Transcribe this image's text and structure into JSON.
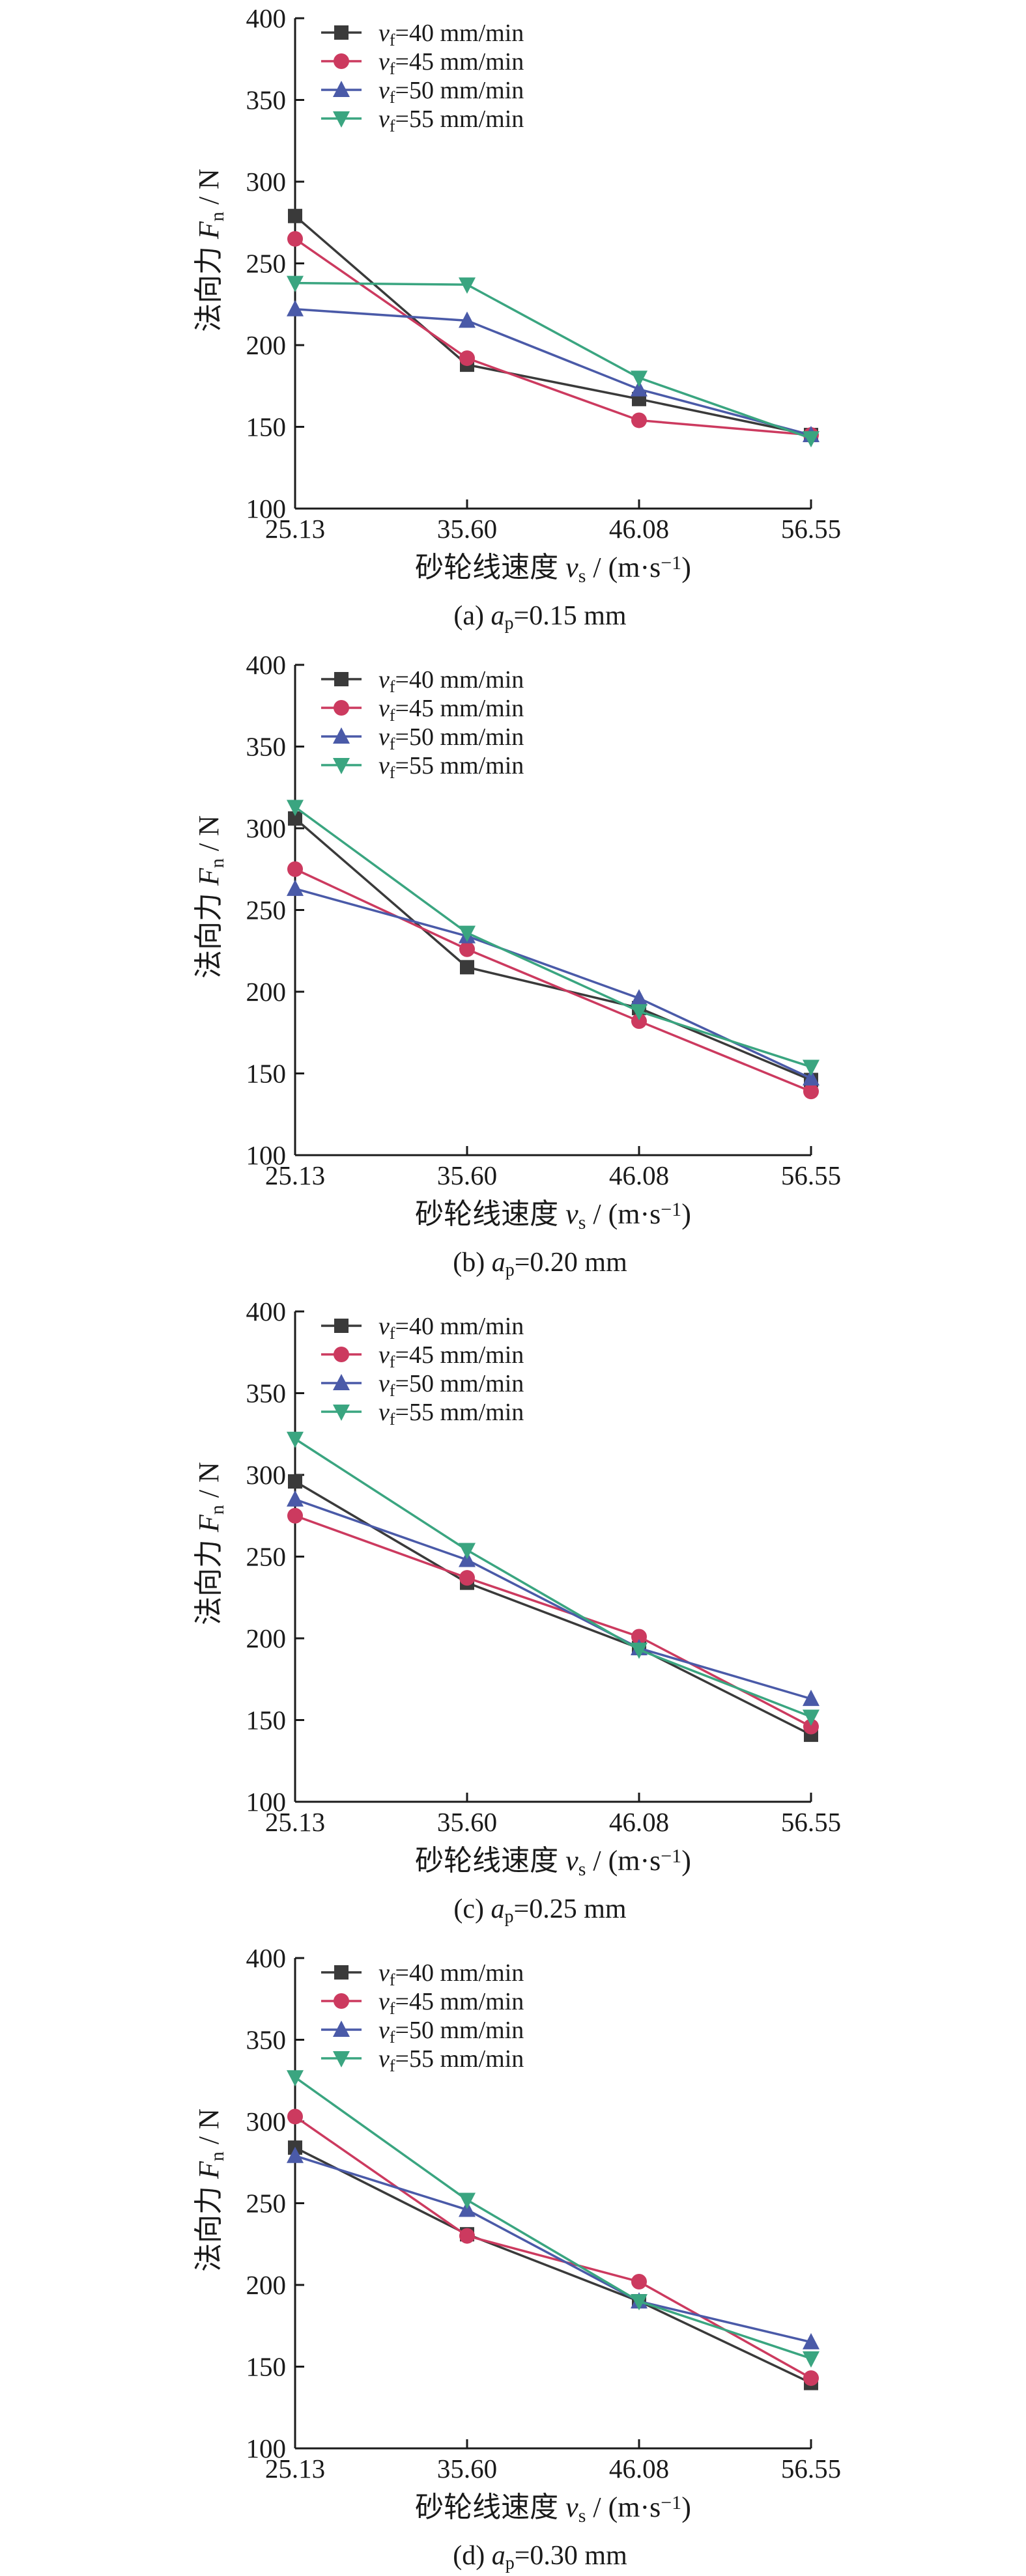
{
  "chart_data": [
    {
      "type": "line",
      "caption": "(a) a_p=0.15 mm",
      "caption_parts": {
        "prefix": "(a) ",
        "var": "a",
        "sub": "p",
        "rest": "=0.15 mm"
      },
      "xlabel": {
        "main": "砂轮线速度 ",
        "var": "v",
        "sub": "s",
        "unit": " / (m·s",
        "sup": "−1",
        "close": ")"
      },
      "ylabel": {
        "main": "法向力 ",
        "var": "F",
        "sub": "n",
        "unit": " / N"
      },
      "categories": [
        "25.13",
        "35.60",
        "46.08",
        "56.55"
      ],
      "ylim": [
        100,
        400
      ],
      "yticks": [
        100,
        150,
        200,
        250,
        300,
        350,
        400
      ],
      "legend_position": "top-left",
      "series": [
        {
          "name": "v_f=40 mm/min",
          "label_var": "v",
          "label_sub": "f",
          "label_rest": "=40 mm/min",
          "color": "#3a3a3a",
          "marker": "square",
          "values": [
            279,
            188,
            167,
            145
          ]
        },
        {
          "name": "v_f=45 mm/min",
          "label_var": "v",
          "label_sub": "f",
          "label_rest": "=45 mm/min",
          "color": "#cc3a5f",
          "marker": "circle",
          "values": [
            265,
            192,
            154,
            145
          ]
        },
        {
          "name": "v_f=50 mm/min",
          "label_var": "v",
          "label_sub": "f",
          "label_rest": "=50 mm/min",
          "color": "#4a5aa8",
          "marker": "triangle-up",
          "values": [
            222,
            215,
            173,
            145
          ]
        },
        {
          "name": "v_f=55 mm/min",
          "label_var": "v",
          "label_sub": "f",
          "label_rest": "=55 mm/min",
          "color": "#3aa580",
          "marker": "triangle-down",
          "values": [
            238,
            237,
            180,
            143
          ]
        }
      ]
    },
    {
      "type": "line",
      "caption": "(b) a_p=0.20 mm",
      "caption_parts": {
        "prefix": "(b) ",
        "var": "a",
        "sub": "p",
        "rest": "=0.20 mm"
      },
      "xlabel": {
        "main": "砂轮线速度 ",
        "var": "v",
        "sub": "s",
        "unit": " / (m·s",
        "sup": "−1",
        "close": ")"
      },
      "ylabel": {
        "main": "法向力 ",
        "var": "F",
        "sub": "n",
        "unit": " / N"
      },
      "categories": [
        "25.13",
        "35.60",
        "46.08",
        "56.55"
      ],
      "ylim": [
        100,
        400
      ],
      "yticks": [
        100,
        150,
        200,
        250,
        300,
        350,
        400
      ],
      "legend_position": "top-left",
      "series": [
        {
          "name": "v_f=40 mm/min",
          "label_var": "v",
          "label_sub": "f",
          "label_rest": "=40 mm/min",
          "color": "#3a3a3a",
          "marker": "square",
          "values": [
            306,
            215,
            190,
            146
          ]
        },
        {
          "name": "v_f=45 mm/min",
          "label_var": "v",
          "label_sub": "f",
          "label_rest": "=45 mm/min",
          "color": "#cc3a5f",
          "marker": "circle",
          "values": [
            275,
            226,
            182,
            139
          ]
        },
        {
          "name": "v_f=50 mm/min",
          "label_var": "v",
          "label_sub": "f",
          "label_rest": "=50 mm/min",
          "color": "#4a5aa8",
          "marker": "triangle-up",
          "values": [
            263,
            234,
            196,
            147
          ]
        },
        {
          "name": "v_f=55 mm/min",
          "label_var": "v",
          "label_sub": "f",
          "label_rest": "=55 mm/min",
          "color": "#3aa580",
          "marker": "triangle-down",
          "values": [
            313,
            236,
            188,
            154
          ]
        }
      ]
    },
    {
      "type": "line",
      "caption": "(c) a_p=0.25 mm",
      "caption_parts": {
        "prefix": "(c) ",
        "var": "a",
        "sub": "p",
        "rest": "=0.25 mm"
      },
      "xlabel": {
        "main": "砂轮线速度 ",
        "var": "v",
        "sub": "s",
        "unit": " / (m·s",
        "sup": "−1",
        "close": ")"
      },
      "ylabel": {
        "main": "法向力 ",
        "var": "F",
        "sub": "n",
        "unit": " / N"
      },
      "categories": [
        "25.13",
        "35.60",
        "46.08",
        "56.55"
      ],
      "ylim": [
        100,
        400
      ],
      "yticks": [
        100,
        150,
        200,
        250,
        300,
        350,
        400
      ],
      "legend_position": "top-left",
      "series": [
        {
          "name": "v_f=40 mm/min",
          "label_var": "v",
          "label_sub": "f",
          "label_rest": "=40 mm/min",
          "color": "#3a3a3a",
          "marker": "square",
          "values": [
            296,
            234,
            194,
            141
          ]
        },
        {
          "name": "v_f=45 mm/min",
          "label_var": "v",
          "label_sub": "f",
          "label_rest": "=45 mm/min",
          "color": "#cc3a5f",
          "marker": "circle",
          "values": [
            275,
            237,
            201,
            146
          ]
        },
        {
          "name": "v_f=50 mm/min",
          "label_var": "v",
          "label_sub": "f",
          "label_rest": "=50 mm/min",
          "color": "#4a5aa8",
          "marker": "triangle-up",
          "values": [
            285,
            248,
            194,
            163
          ]
        },
        {
          "name": "v_f=55 mm/min",
          "label_var": "v",
          "label_sub": "f",
          "label_rest": "=55 mm/min",
          "color": "#3aa580",
          "marker": "triangle-down",
          "values": [
            322,
            254,
            193,
            152
          ]
        }
      ]
    },
    {
      "type": "line",
      "caption": "(d) a_p=0.30 mm",
      "caption_parts": {
        "prefix": "(d) ",
        "var": "a",
        "sub": "p",
        "rest": "=0.30 mm"
      },
      "xlabel": {
        "main": "砂轮线速度 ",
        "var": "v",
        "sub": "s",
        "unit": " / (m·s",
        "sup": "−1",
        "close": ")"
      },
      "ylabel": {
        "main": "法向力 ",
        "var": "F",
        "sub": "n",
        "unit": " / N"
      },
      "categories": [
        "25.13",
        "35.60",
        "46.08",
        "56.55"
      ],
      "ylim": [
        100,
        400
      ],
      "yticks": [
        100,
        150,
        200,
        250,
        300,
        350,
        400
      ],
      "legend_position": "top-left",
      "series": [
        {
          "name": "v_f=40 mm/min",
          "label_var": "v",
          "label_sub": "f",
          "label_rest": "=40 mm/min",
          "color": "#3a3a3a",
          "marker": "square",
          "values": [
            284,
            231,
            190,
            140
          ]
        },
        {
          "name": "v_f=45 mm/min",
          "label_var": "v",
          "label_sub": "f",
          "label_rest": "=45 mm/min",
          "color": "#cc3a5f",
          "marker": "circle",
          "values": [
            303,
            230,
            202,
            143
          ]
        },
        {
          "name": "v_f=50 mm/min",
          "label_var": "v",
          "label_sub": "f",
          "label_rest": "=50 mm/min",
          "color": "#4a5aa8",
          "marker": "triangle-up",
          "values": [
            279,
            246,
            190,
            165
          ]
        },
        {
          "name": "v_f=55 mm/min",
          "label_var": "v",
          "label_sub": "f",
          "label_rest": "=55 mm/min",
          "color": "#3aa580",
          "marker": "triangle-down",
          "values": [
            327,
            252,
            190,
            155
          ]
        }
      ]
    }
  ]
}
